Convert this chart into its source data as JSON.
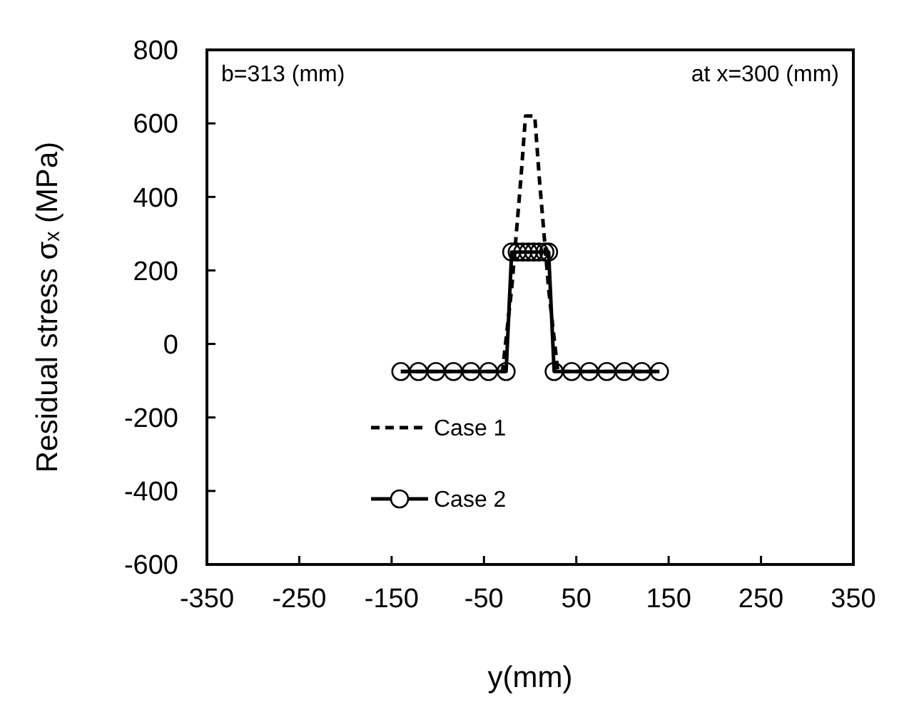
{
  "chart_data": {
    "type": "line",
    "xlabel": "y(mm)",
    "ylabel": "Residual stress σₓ (MPa)",
    "annotations": [
      "b=313 (mm)",
      "at x=300 (mm)"
    ],
    "xlim": [
      -350,
      350
    ],
    "xticks": [
      -350,
      -250,
      -150,
      -50,
      50,
      150,
      250,
      350
    ],
    "ylim": [
      -600,
      800
    ],
    "yticks": [
      -600,
      -400,
      -200,
      0,
      200,
      400,
      600,
      800
    ],
    "grid": false,
    "legend": "bottom",
    "series": [
      {
        "name": "Case 1",
        "color": "#000000",
        "line_style": "dashed",
        "marker": "none",
        "x": [
          -140,
          -30,
          -20,
          -10,
          -5,
          5,
          10,
          20,
          30,
          140
        ],
        "values": [
          -75,
          -75,
          150,
          450,
          620,
          620,
          450,
          150,
          -75,
          -75
        ]
      },
      {
        "name": "Case 2",
        "color": "#000000",
        "line_style": "solid",
        "marker": "circle",
        "x": [
          -140,
          -121,
          -102,
          -83,
          -64,
          -45,
          -26,
          -20,
          -14,
          -8,
          -2,
          4,
          10,
          16,
          20,
          26,
          45,
          64,
          83,
          102,
          121,
          140
        ],
        "values": [
          -75,
          -75,
          -75,
          -75,
          -75,
          -75,
          -75,
          250,
          250,
          250,
          250,
          250,
          250,
          250,
          250,
          -75,
          -75,
          -75,
          -75,
          -75,
          -75,
          -75
        ]
      }
    ]
  }
}
